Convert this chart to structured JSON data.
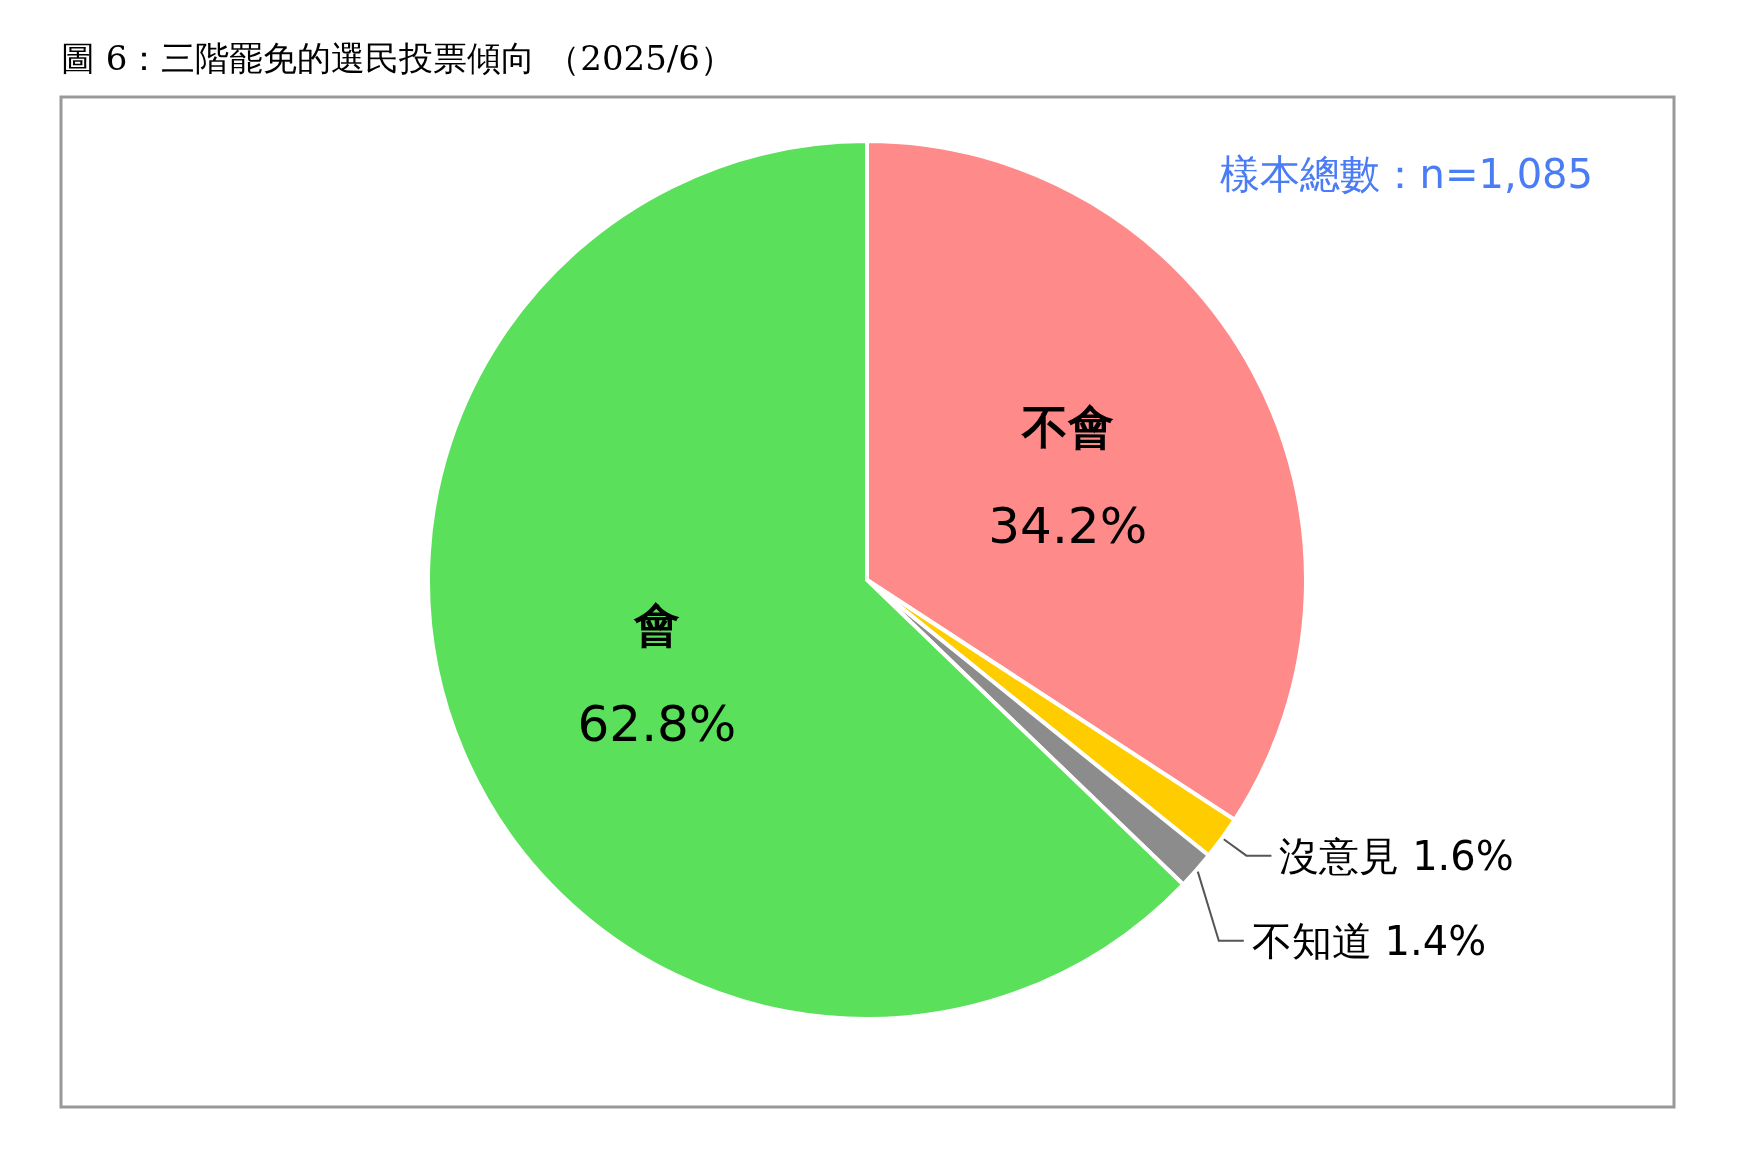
{
  "chart_data": {
    "type": "pie",
    "title": "圖 6：三階罷免的選民投票傾向 （2025/6）",
    "categories": [
      "不會",
      "沒意見",
      "不知道",
      "會"
    ],
    "values": [
      34.2,
      1.6,
      1.4,
      62.8
    ],
    "colors": [
      "#ff8a8a",
      "#ffcc00",
      "#8c8c8c",
      "#5ae05a"
    ],
    "value_labels": [
      "34.2%",
      "1.6%",
      "1.4%",
      "62.8%"
    ],
    "annotations": [
      "樣本總數：n=1,085"
    ]
  }
}
